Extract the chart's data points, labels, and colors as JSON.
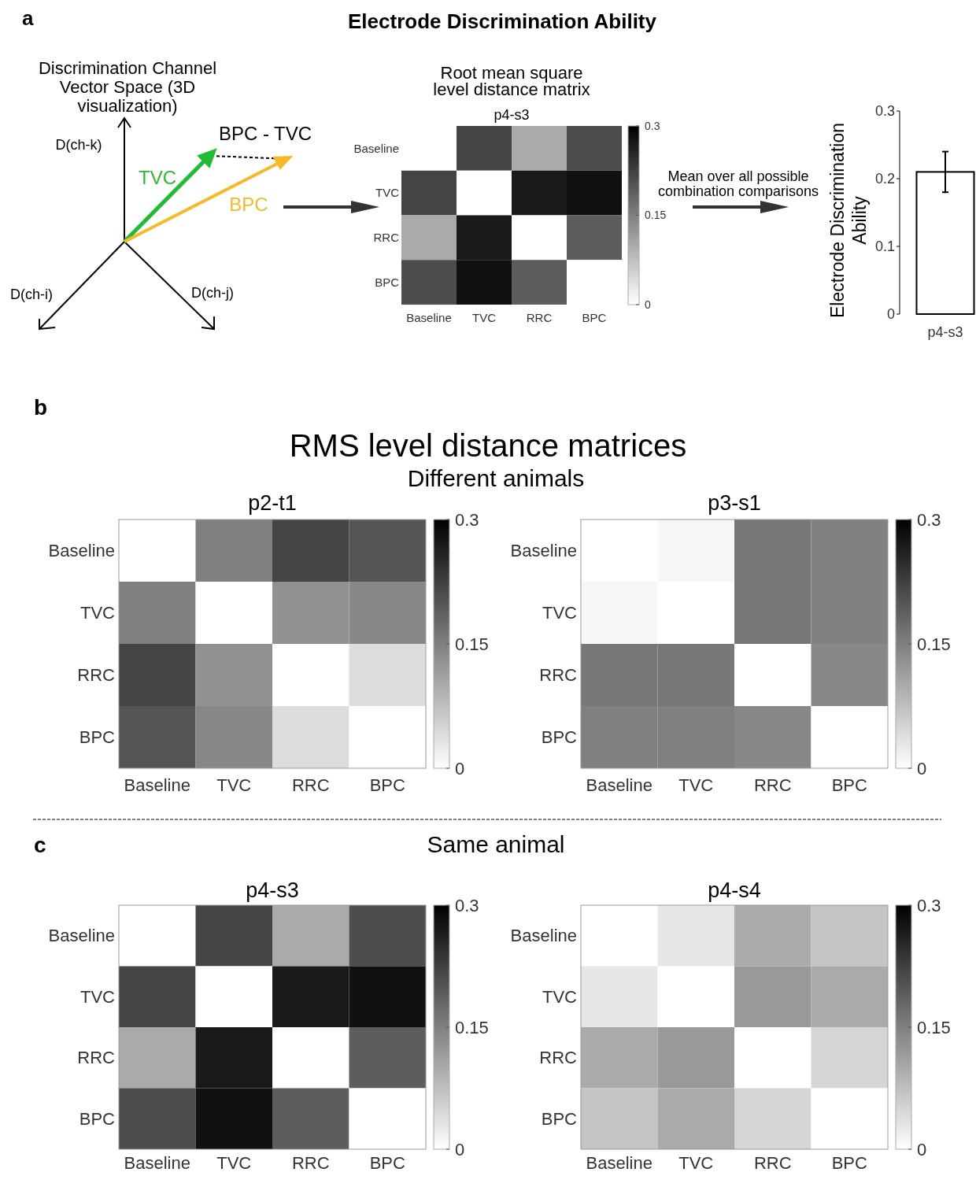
{
  "chart_data": [
    {
      "type": "other",
      "title": "Electrode Discrimination Ability",
      "annotations": [
        "a",
        "Discrimination Channel Vector Space (3D visualization)",
        "D(ch-k)",
        "D(ch-i)",
        "D(ch-j)",
        "TVC",
        "BPC",
        "BPC - TVC",
        "Mean over all possible combination comparisons"
      ]
    },
    {
      "type": "heatmap",
      "title": "Root mean square level distance matrix",
      "subtitle": "p4-s3",
      "categories": [
        "Baseline",
        "TVC",
        "RRC",
        "BPC"
      ],
      "y_categories": [
        "Baseline",
        "TVC",
        "RRC",
        "BPC"
      ],
      "cells": [
        [
          0,
          0.22,
          0.1,
          0.21
        ],
        [
          0.22,
          0,
          0.27,
          0.28
        ],
        [
          0.1,
          0.27,
          0,
          0.19
        ],
        [
          0.21,
          0.28,
          0.19,
          0
        ]
      ],
      "clim": [
        0,
        0.3
      ],
      "cticks": [
        0,
        0.15,
        0.3
      ]
    },
    {
      "type": "bar",
      "categories": [
        "p4-s3"
      ],
      "values": [
        0.21
      ],
      "errors": [
        [
          0.18,
          0.24
        ]
      ],
      "color": "#ffffff",
      "ylabel": "Electrode Discrimination Ability",
      "ylim": [
        0,
        0.3
      ],
      "yticks": [
        0,
        0.1,
        0.2,
        0.3
      ]
    },
    {
      "type": "other",
      "title": "RMS level distance matrices",
      "subtitle": "Different animals",
      "annotations": [
        "b"
      ]
    },
    {
      "type": "heatmap",
      "title": "p2-t1",
      "categories": [
        "Baseline",
        "TVC",
        "RRC",
        "BPC"
      ],
      "y_categories": [
        "Baseline",
        "TVC",
        "RRC",
        "BPC"
      ],
      "cells": [
        [
          0,
          0.15,
          0.22,
          0.2
        ],
        [
          0.15,
          0,
          0.13,
          0.14
        ],
        [
          0.22,
          0.13,
          0,
          0.04
        ],
        [
          0.2,
          0.14,
          0.04,
          0
        ]
      ],
      "clim": [
        0,
        0.3
      ],
      "cticks": [
        0,
        0.15,
        0.3
      ]
    },
    {
      "type": "heatmap",
      "title": "p3-s1",
      "categories": [
        "Baseline",
        "TVC",
        "RRC",
        "BPC"
      ],
      "y_categories": [
        "Baseline",
        "TVC",
        "RRC",
        "BPC"
      ],
      "cells": [
        [
          0,
          0.01,
          0.16,
          0.15
        ],
        [
          0.01,
          0,
          0.16,
          0.15
        ],
        [
          0.16,
          0.16,
          0,
          0.14
        ],
        [
          0.15,
          0.15,
          0.14,
          0
        ]
      ],
      "clim": [
        0,
        0.3
      ],
      "cticks": [
        0,
        0.15,
        0.3
      ]
    },
    {
      "type": "other",
      "title": "Same animal",
      "annotations": [
        "c"
      ]
    },
    {
      "type": "heatmap",
      "title": "p4-s3",
      "categories": [
        "Baseline",
        "TVC",
        "RRC",
        "BPC"
      ],
      "y_categories": [
        "Baseline",
        "TVC",
        "RRC",
        "BPC"
      ],
      "cells": [
        [
          0,
          0.22,
          0.1,
          0.21
        ],
        [
          0.22,
          0,
          0.27,
          0.28
        ],
        [
          0.1,
          0.27,
          0,
          0.19
        ],
        [
          0.21,
          0.28,
          0.19,
          0
        ]
      ],
      "clim": [
        0,
        0.3
      ],
      "cticks": [
        0,
        0.15,
        0.3
      ]
    },
    {
      "type": "heatmap",
      "title": "p4-s4",
      "categories": [
        "Baseline",
        "TVC",
        "RRC",
        "BPC"
      ],
      "y_categories": [
        "Baseline",
        "TVC",
        "RRC",
        "BPC"
      ],
      "cells": [
        [
          0,
          0.03,
          0.1,
          0.07
        ],
        [
          0.03,
          0,
          0.12,
          0.1
        ],
        [
          0.1,
          0.12,
          0,
          0.05
        ],
        [
          0.07,
          0.1,
          0.05,
          0
        ]
      ],
      "clim": [
        0,
        0.3
      ],
      "cticks": [
        0,
        0.15,
        0.3
      ]
    }
  ]
}
